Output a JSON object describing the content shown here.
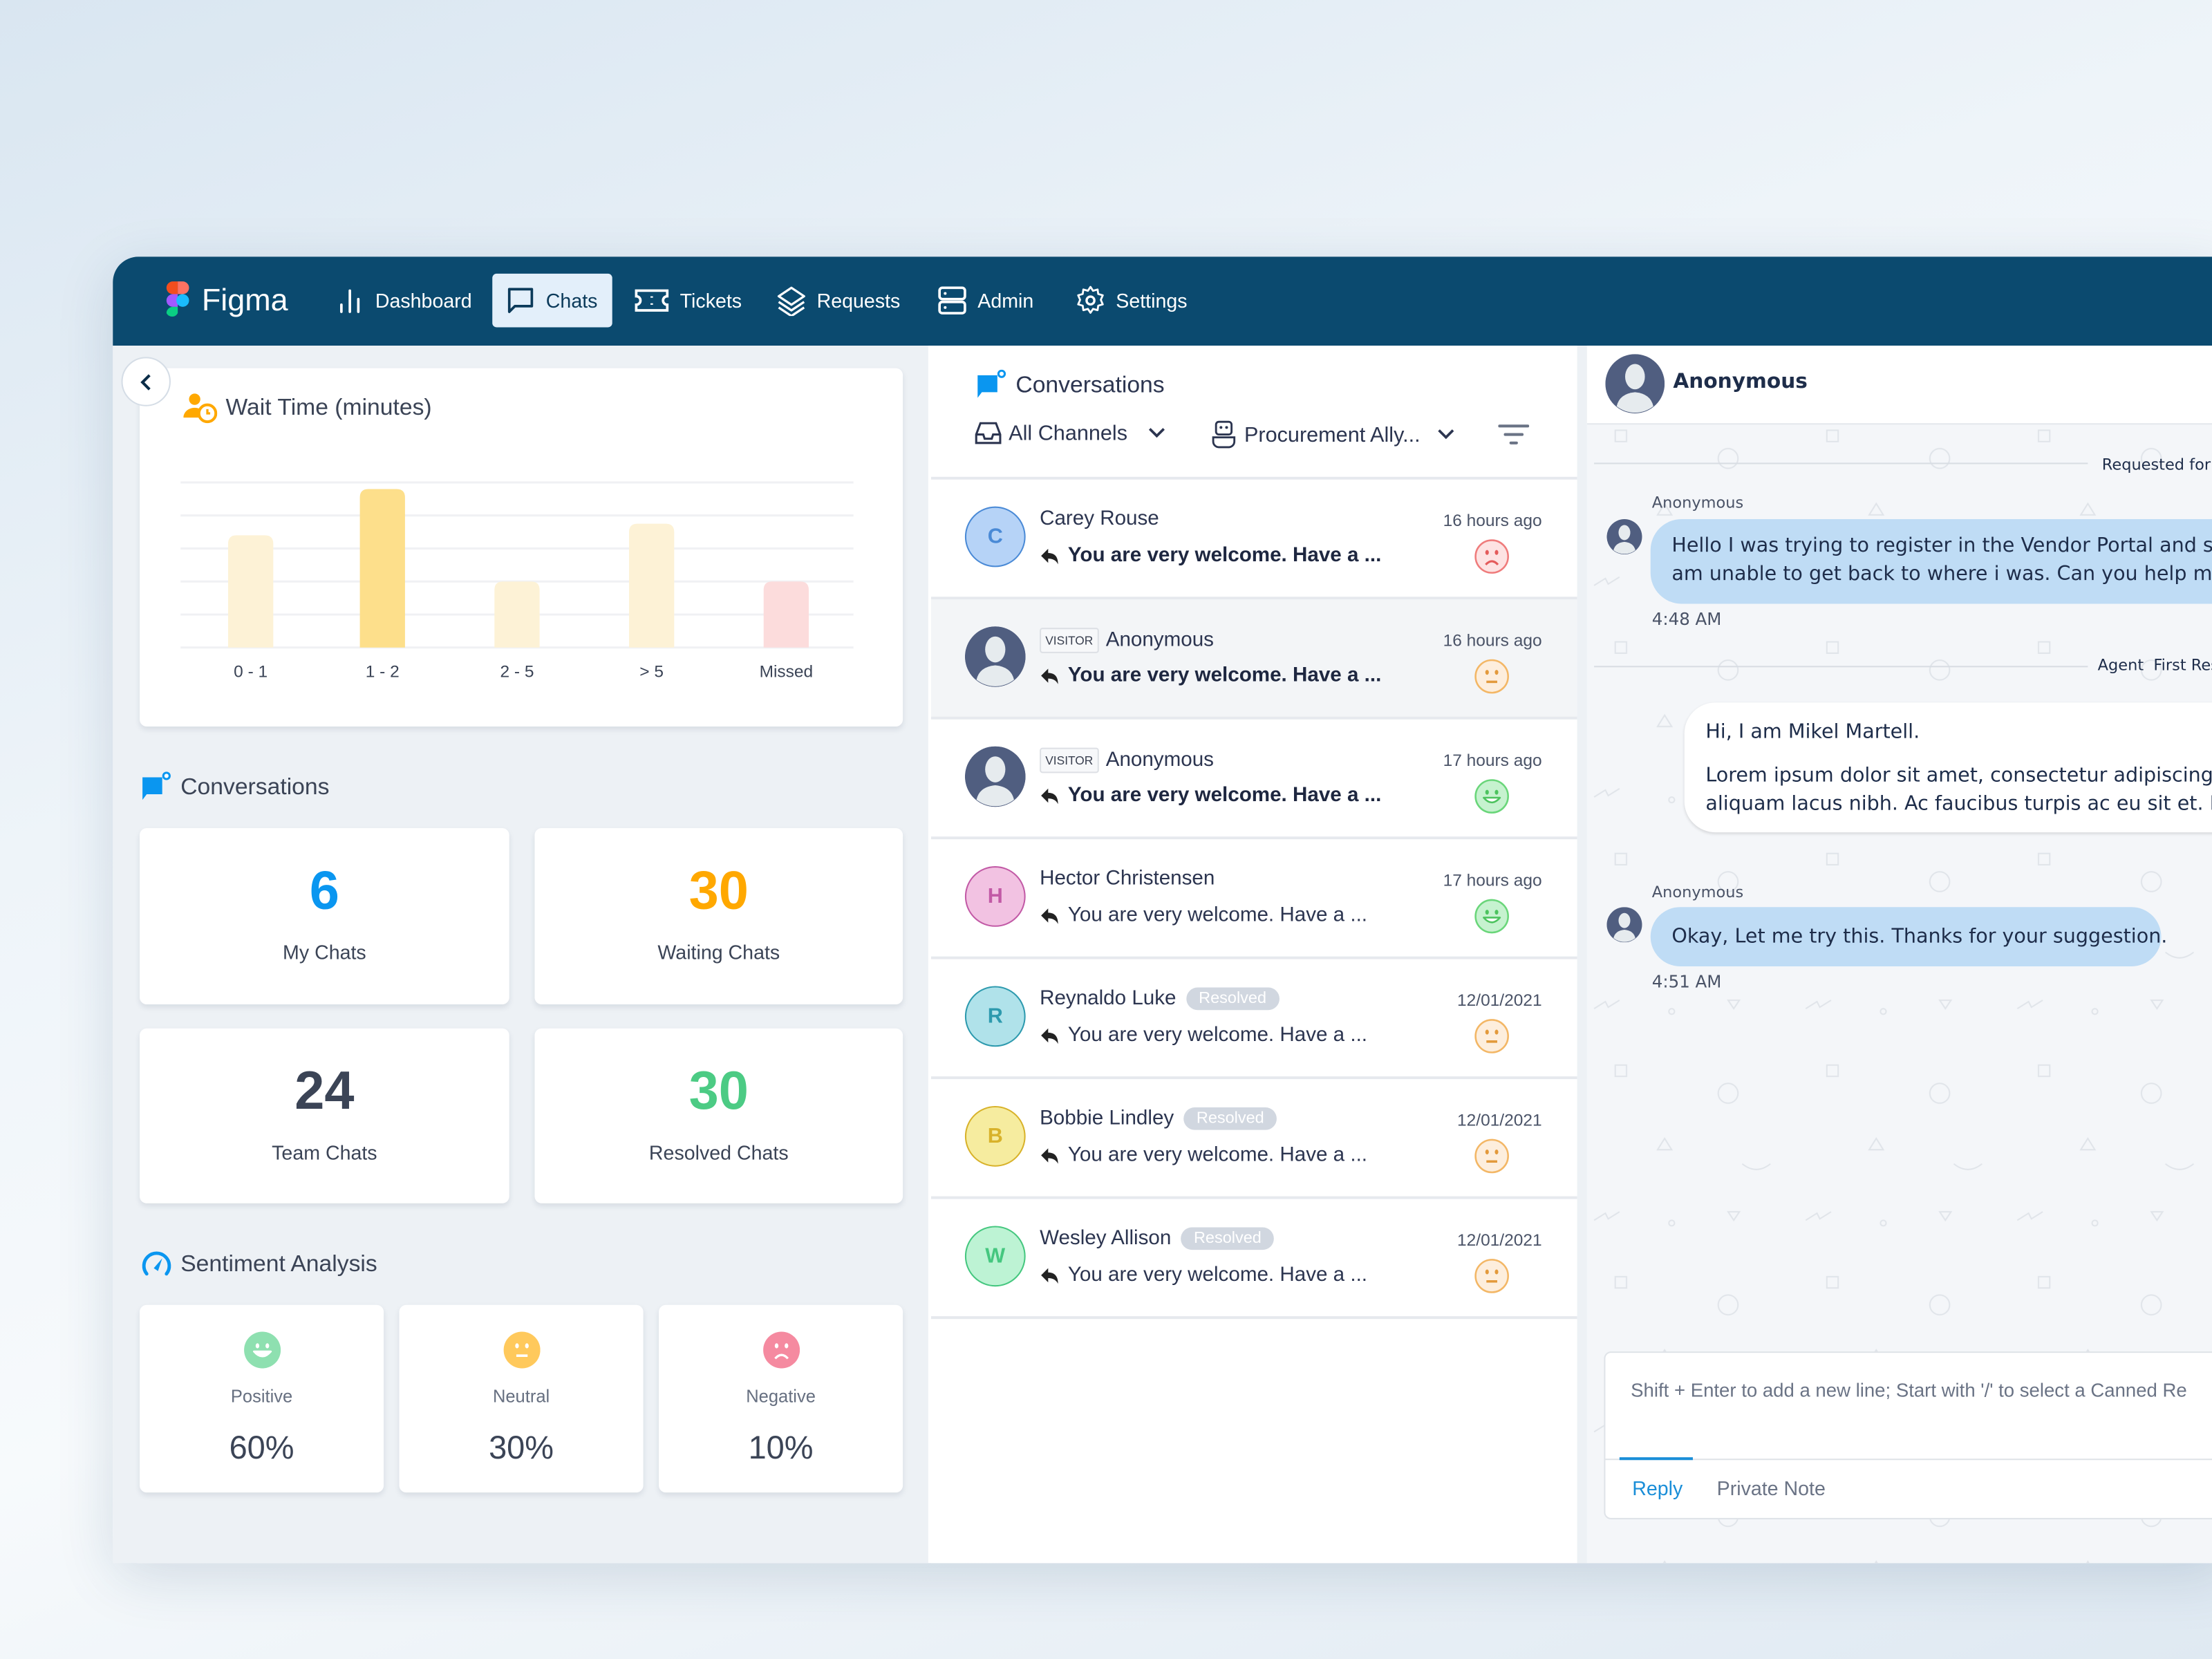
{
  "nav": {
    "brand": "Figma",
    "items": [
      {
        "label": "Dashboard",
        "icon": "bar-chart-icon",
        "active": false
      },
      {
        "label": "Chats",
        "icon": "chat-icon",
        "active": true
      },
      {
        "label": "Tickets",
        "icon": "ticket-icon",
        "active": false
      },
      {
        "label": "Requests",
        "icon": "layers-icon",
        "active": false
      },
      {
        "label": "Admin",
        "icon": "server-icon",
        "active": false
      },
      {
        "label": "Settings",
        "icon": "gear-icon",
        "active": false
      }
    ]
  },
  "dashboard": {
    "wait_time": {
      "title": "Wait Time (minutes)",
      "chart_data": {
        "type": "bar",
        "categories": [
          "0 - 1",
          "1 - 2",
          "2 - 5",
          "> 5",
          "Missed"
        ],
        "values": [
          3.4,
          4.8,
          2,
          3.75,
          2
        ],
        "ylim": [
          0,
          5
        ],
        "grid": true,
        "colors": [
          "#fdf2d6",
          "#fddf8b",
          "#fdf2d6",
          "#fdf2d6",
          "#fcdcdc"
        ]
      }
    },
    "conversations": {
      "title": "Conversations",
      "stats": [
        {
          "value": "6",
          "label": "My Chats",
          "color": "#0a96f0"
        },
        {
          "value": "30",
          "label": "Waiting Chats",
          "color": "#ffa800"
        },
        {
          "value": "24",
          "label": "Team Chats",
          "color": "#3b4456"
        },
        {
          "value": "30",
          "label": "Resolved Chats",
          "color": "#4ccb84"
        }
      ]
    },
    "sentiment": {
      "title": "Sentiment Analysis",
      "items": [
        {
          "label": "Positive",
          "value": "60%",
          "type": "positive",
          "color": "#8ee0b0"
        },
        {
          "label": "Neutral",
          "value": "30%",
          "type": "neutral",
          "color": "#ffc95c"
        },
        {
          "label": "Negative",
          "value": "10%",
          "type": "negative",
          "color": "#f58aa0"
        }
      ]
    }
  },
  "conversation_list": {
    "title": "Conversations",
    "channel_filter": "All Channels",
    "bot_filter": "Procurement Ally...",
    "items": [
      {
        "initial": "C",
        "name": "Carey Rouse",
        "visitor": false,
        "resolved": false,
        "message": "You are very welcome. Have a ...",
        "unread": true,
        "time": "16 hours ago",
        "sentiment": "negative",
        "avatar_bg": "#b6d3f7",
        "avatar_fg": "#4a8ad6",
        "selected": false
      },
      {
        "initial": "",
        "name": "Anonymous",
        "visitor": true,
        "resolved": false,
        "message": "You are very welcome. Have a ...",
        "unread": true,
        "time": "16 hours ago",
        "sentiment": "neutral",
        "selected": true
      },
      {
        "initial": "",
        "name": "Anonymous",
        "visitor": true,
        "resolved": false,
        "message": "You are very welcome. Have a ...",
        "unread": true,
        "time": "17 hours ago",
        "sentiment": "positive",
        "selected": false
      },
      {
        "initial": "H",
        "name": "Hector Christensen",
        "visitor": false,
        "resolved": false,
        "message": "You are very welcome. Have a ...",
        "unread": false,
        "time": "17 hours ago",
        "sentiment": "positive",
        "avatar_bg": "#f2c2e2",
        "avatar_fg": "#c25aa6",
        "selected": false
      },
      {
        "initial": "R",
        "name": "Reynaldo Luke",
        "visitor": false,
        "resolved": true,
        "message": "You are very welcome. Have a ...",
        "unread": false,
        "time": "12/01/2021",
        "sentiment": "neutral",
        "avatar_bg": "#b0e2ea",
        "avatar_fg": "#2d9aae",
        "selected": false
      },
      {
        "initial": "B",
        "name": "Bobbie Lindley",
        "visitor": false,
        "resolved": true,
        "message": "You are very welcome. Have a ...",
        "unread": false,
        "time": "12/01/2021",
        "sentiment": "neutral",
        "avatar_bg": "#f6ec9f",
        "avatar_fg": "#d8b22a",
        "selected": false
      },
      {
        "initial": "W",
        "name": "Wesley Allison",
        "visitor": false,
        "resolved": true,
        "message": "You are very welcome. Have a ...",
        "unread": false,
        "time": "12/01/2021",
        "sentiment": "neutral",
        "avatar_bg": "#bdf3d4",
        "avatar_fg": "#45c77f",
        "selected": false
      }
    ],
    "visitor_badge": "VISITOR",
    "resolved_badge": "Resolved"
  },
  "chat": {
    "contact_name": "Anonymous",
    "divider_requested": "Requested for",
    "divider_agent": "Agent  First Res",
    "messages": [
      {
        "sender": "Anonymous",
        "text_lines": [
          "Hello I was trying to register in the Vendor Portal and som",
          "am unable to get back to where i was. Can you help me g"
        ],
        "time": "4:48 AM"
      },
      {
        "sender": "",
        "text_lines": [
          "Hi, I am Mikel Martell.",
          "Lorem ipsum dolor sit amet, consectetur adipiscing eli",
          "aliquam lacus nibh. Ac faucibus turpis ac eu sit et. Puru"
        ],
        "time": ""
      },
      {
        "sender": "Anonymous",
        "text_lines": [
          "Okay, Let me try this. Thanks for your suggestion."
        ],
        "time": "4:51 AM"
      }
    ],
    "composer": {
      "placeholder": "Shift + Enter to add a new line; Start with '/' to select a Canned Re",
      "tabs": [
        "Reply",
        "Private Note"
      ],
      "active_tab": "Reply"
    }
  },
  "colors": {
    "nav_bg": "#0b4a6f",
    "accent": "#0a96f0",
    "bubble_visitor": "#bfdcf5"
  }
}
